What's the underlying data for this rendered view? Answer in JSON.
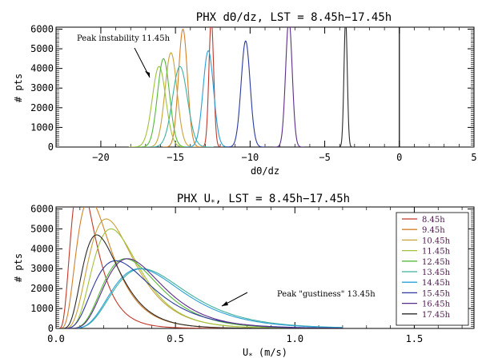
{
  "colors": {
    "8.45h": "#c0392b",
    "9.45h": "#d4802a",
    "10.45h": "#c8a23a",
    "11.45h": "#9fc23a",
    "12.45h": "#55b83a",
    "13.45h": "#3fb0a0",
    "14.45h": "#2b9fd8",
    "15.45h": "#2b3aa0",
    "16.45h": "#5b2d8a",
    "17.45h": "#2a2a2a"
  },
  "chart_data": [
    {
      "type": "line",
      "title": "PHX dΘ/dz, LST = 8.45h−17.45h",
      "xlabel": "dΘ/dz",
      "ylabel": "# pts",
      "xlim": [
        -23,
        5
      ],
      "ylim": [
        0,
        6100
      ],
      "xticks": [
        "−20",
        "−15",
        "−10",
        "−5",
        "0",
        "5"
      ],
      "yticks": [
        "0",
        "1000",
        "2000",
        "3000",
        "4000",
        "5000",
        "6000"
      ],
      "vline": 0,
      "annotation": "Peak instability 11.45h",
      "series": [
        {
          "name": "8.45h",
          "center": -12.6,
          "width": 0.16,
          "peak": 6500
        },
        {
          "name": "9.45h",
          "center": -14.5,
          "width": 0.3,
          "peak": 6000
        },
        {
          "name": "10.45h",
          "center": -15.3,
          "width": 0.4,
          "peak": 4800
        },
        {
          "name": "11.45h",
          "center": -16.1,
          "width": 0.45,
          "peak": 4100
        },
        {
          "name": "12.45h",
          "center": -15.8,
          "width": 0.4,
          "peak": 4500
        },
        {
          "name": "13.45h",
          "center": -14.7,
          "width": 0.5,
          "peak": 4100
        },
        {
          "name": "14.45h",
          "center": -12.8,
          "width": 0.35,
          "peak": 4900
        },
        {
          "name": "15.45h",
          "center": -10.3,
          "width": 0.3,
          "peak": 5400
        },
        {
          "name": "16.45h",
          "center": -7.4,
          "width": 0.22,
          "peak": 6500
        },
        {
          "name": "17.45h",
          "center": -3.6,
          "width": 0.11,
          "peak": 6500
        }
      ]
    },
    {
      "type": "line",
      "title": "PHX U*, LST = 8.45h−17.45h",
      "xlabel": "U* (m/s)",
      "ylabel": "# pts",
      "xlim": [
        0,
        1.75
      ],
      "ylim": [
        0,
        6100
      ],
      "xticks": [
        "0.0",
        "0.5",
        "1.0",
        "1.5"
      ],
      "yticks": [
        "0",
        "1000",
        "2000",
        "3000",
        "4000",
        "5000",
        "6000"
      ],
      "annotation": "Peak \"gustiness\" 13.45h",
      "series": [
        {
          "name": "8.45h",
          "mode": 0.1,
          "sigma": 0.5,
          "peak": 7500
        },
        {
          "name": "9.45h",
          "mode": 0.14,
          "sigma": 0.5,
          "peak": 6500
        },
        {
          "name": "10.45h",
          "mode": 0.21,
          "sigma": 0.45,
          "peak": 5500
        },
        {
          "name": "11.45h",
          "mode": 0.23,
          "sigma": 0.42,
          "peak": 5000
        },
        {
          "name": "12.45h",
          "mode": 0.29,
          "sigma": 0.4,
          "peak": 3500
        },
        {
          "name": "13.45h",
          "mode": 0.36,
          "sigma": 0.42,
          "peak": 3000
        },
        {
          "name": "14.45h",
          "mode": 0.35,
          "sigma": 0.42,
          "peak": 3000
        },
        {
          "name": "15.45h",
          "mode": 0.25,
          "sigma": 0.48,
          "peak": 3400
        },
        {
          "name": "16.45h",
          "mode": 0.3,
          "sigma": 0.4,
          "peak": 3500
        },
        {
          "name": "17.45h",
          "mode": 0.17,
          "sigma": 0.45,
          "peak": 4700
        }
      ],
      "legend": [
        "8.45h",
        "9.45h",
        "10.45h",
        "11.45h",
        "12.45h",
        "13.45h",
        "14.45h",
        "15.45h",
        "16.45h",
        "17.45h"
      ]
    }
  ]
}
